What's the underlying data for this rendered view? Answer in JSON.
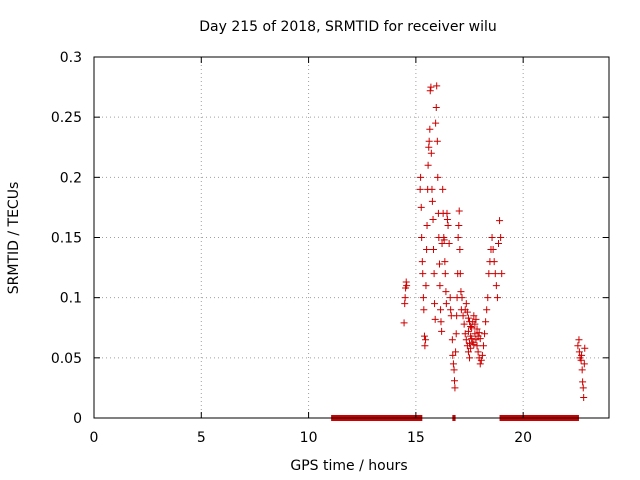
{
  "colors": {
    "series": "#cc0000",
    "grid": "#a0a0a0",
    "axis": "#000000"
  },
  "chart_data": {
    "type": "scatter",
    "title": "Day 215 of 2018, SRMTID for receiver wilu",
    "xlabel": "GPS time / hours",
    "ylabel": "SRMTID / TECUs",
    "xlim": [
      0,
      24
    ],
    "ylim": [
      0,
      0.3
    ],
    "xticks": [
      "0",
      "5",
      "10",
      "15",
      "20"
    ],
    "xtick_values": [
      0,
      5,
      10,
      15,
      20
    ],
    "yticks": [
      "0",
      "0.05",
      "0.1",
      "0.15",
      "0.2",
      "0.25",
      "0.3"
    ],
    "ytick_values": [
      0,
      0.05,
      0.1,
      0.15,
      0.2,
      0.25,
      0.3
    ],
    "grid": true,
    "marker": "+",
    "series": [
      {
        "name": "SRMTID",
        "points": [
          [
            14.45,
            0.079
          ],
          [
            14.48,
            0.095
          ],
          [
            14.5,
            0.1
          ],
          [
            14.52,
            0.108
          ],
          [
            14.55,
            0.113
          ],
          [
            14.57,
            0.11
          ],
          [
            15.2,
            0.19
          ],
          [
            15.22,
            0.2
          ],
          [
            15.25,
            0.175
          ],
          [
            15.27,
            0.15
          ],
          [
            15.3,
            0.13
          ],
          [
            15.32,
            0.12
          ],
          [
            15.35,
            0.1
          ],
          [
            15.37,
            0.09
          ],
          [
            15.4,
            0.068
          ],
          [
            15.42,
            0.06
          ],
          [
            15.45,
            0.065
          ],
          [
            15.47,
            0.11
          ],
          [
            15.5,
            0.14
          ],
          [
            15.52,
            0.16
          ],
          [
            15.55,
            0.19
          ],
          [
            15.57,
            0.21
          ],
          [
            15.6,
            0.225
          ],
          [
            15.62,
            0.23
          ],
          [
            15.65,
            0.24
          ],
          [
            15.67,
            0.272
          ],
          [
            15.7,
            0.275
          ],
          [
            15.72,
            0.22
          ],
          [
            15.75,
            0.19
          ],
          [
            15.77,
            0.18
          ],
          [
            15.8,
            0.165
          ],
          [
            15.82,
            0.14
          ],
          [
            15.85,
            0.12
          ],
          [
            15.87,
            0.095
          ],
          [
            15.9,
            0.082
          ],
          [
            15.92,
            0.245
          ],
          [
            15.95,
            0.258
          ],
          [
            15.97,
            0.276
          ],
          [
            16.0,
            0.23
          ],
          [
            16.02,
            0.2
          ],
          [
            16.05,
            0.17
          ],
          [
            16.07,
            0.15
          ],
          [
            16.1,
            0.128
          ],
          [
            16.12,
            0.11
          ],
          [
            16.15,
            0.09
          ],
          [
            16.17,
            0.08
          ],
          [
            16.2,
            0.072
          ],
          [
            16.22,
            0.145
          ],
          [
            16.25,
            0.19
          ],
          [
            16.27,
            0.17
          ],
          [
            16.3,
            0.15
          ],
          [
            16.32,
            0.148
          ],
          [
            16.35,
            0.13
          ],
          [
            16.37,
            0.12
          ],
          [
            16.4,
            0.105
          ],
          [
            16.42,
            0.095
          ],
          [
            16.45,
            0.17
          ],
          [
            16.47,
            0.165
          ],
          [
            16.5,
            0.16
          ],
          [
            16.55,
            0.145
          ],
          [
            16.6,
            0.1
          ],
          [
            16.62,
            0.09
          ],
          [
            16.65,
            0.085
          ],
          [
            16.7,
            0.065
          ],
          [
            16.72,
            0.052
          ],
          [
            16.75,
            0.045
          ],
          [
            16.78,
            0.04
          ],
          [
            16.8,
            0.031
          ],
          [
            16.82,
            0.025
          ],
          [
            16.85,
            0.055
          ],
          [
            16.88,
            0.07
          ],
          [
            16.9,
            0.085
          ],
          [
            16.92,
            0.1
          ],
          [
            16.95,
            0.12
          ],
          [
            16.97,
            0.15
          ],
          [
            17.0,
            0.16
          ],
          [
            17.02,
            0.172
          ],
          [
            17.05,
            0.14
          ],
          [
            17.07,
            0.12
          ],
          [
            17.1,
            0.105
          ],
          [
            17.12,
            0.09
          ],
          [
            17.15,
            0.1
          ],
          [
            17.2,
            0.085
          ],
          [
            17.25,
            0.078
          ],
          [
            17.3,
            0.07
          ],
          [
            17.35,
            0.065
          ],
          [
            17.4,
            0.06
          ],
          [
            17.45,
            0.055
          ],
          [
            17.5,
            0.05
          ],
          [
            17.55,
            0.068
          ],
          [
            17.6,
            0.075
          ],
          [
            17.65,
            0.08
          ],
          [
            17.7,
            0.085
          ],
          [
            17.75,
            0.07
          ],
          [
            17.8,
            0.065
          ],
          [
            17.85,
            0.06
          ],
          [
            17.9,
            0.055
          ],
          [
            17.95,
            0.05
          ],
          [
            18.0,
            0.045
          ],
          [
            18.05,
            0.048
          ],
          [
            18.1,
            0.052
          ],
          [
            18.15,
            0.06
          ],
          [
            18.2,
            0.07
          ],
          [
            18.25,
            0.08
          ],
          [
            18.3,
            0.09
          ],
          [
            18.35,
            0.1
          ],
          [
            18.4,
            0.12
          ],
          [
            18.45,
            0.13
          ],
          [
            18.5,
            0.14
          ],
          [
            18.55,
            0.15
          ],
          [
            18.6,
            0.14
          ],
          [
            18.65,
            0.13
          ],
          [
            18.7,
            0.12
          ],
          [
            18.75,
            0.11
          ],
          [
            18.8,
            0.1
          ],
          [
            18.85,
            0.145
          ],
          [
            18.9,
            0.164
          ],
          [
            18.95,
            0.15
          ],
          [
            19.0,
            0.12
          ],
          [
            17.45,
            0.072
          ],
          [
            17.5,
            0.062
          ],
          [
            17.55,
            0.058
          ],
          [
            17.6,
            0.066
          ],
          [
            17.65,
            0.063
          ],
          [
            17.7,
            0.061
          ],
          [
            17.75,
            0.078
          ],
          [
            17.8,
            0.082
          ],
          [
            17.85,
            0.074
          ],
          [
            17.9,
            0.068
          ],
          [
            17.95,
            0.071
          ],
          [
            18.0,
            0.066
          ],
          [
            17.3,
            0.09
          ],
          [
            17.35,
            0.095
          ],
          [
            17.4,
            0.088
          ],
          [
            17.45,
            0.083
          ],
          [
            17.5,
            0.08
          ],
          [
            17.55,
            0.076
          ],
          [
            22.55,
            0.06
          ],
          [
            22.6,
            0.065
          ],
          [
            22.62,
            0.055
          ],
          [
            22.65,
            0.05
          ],
          [
            22.7,
            0.048
          ],
          [
            22.72,
            0.052
          ],
          [
            22.75,
            0.04
          ],
          [
            22.77,
            0.03
          ],
          [
            22.8,
            0.025
          ],
          [
            22.82,
            0.017
          ],
          [
            22.85,
            0.045
          ],
          [
            22.87,
            0.058
          ]
        ]
      }
    ],
    "coverage_bars": {
      "y": 0,
      "segments": [
        [
          11.05,
          15.3
        ],
        [
          16.7,
          16.85
        ],
        [
          18.9,
          22.6
        ]
      ]
    }
  }
}
